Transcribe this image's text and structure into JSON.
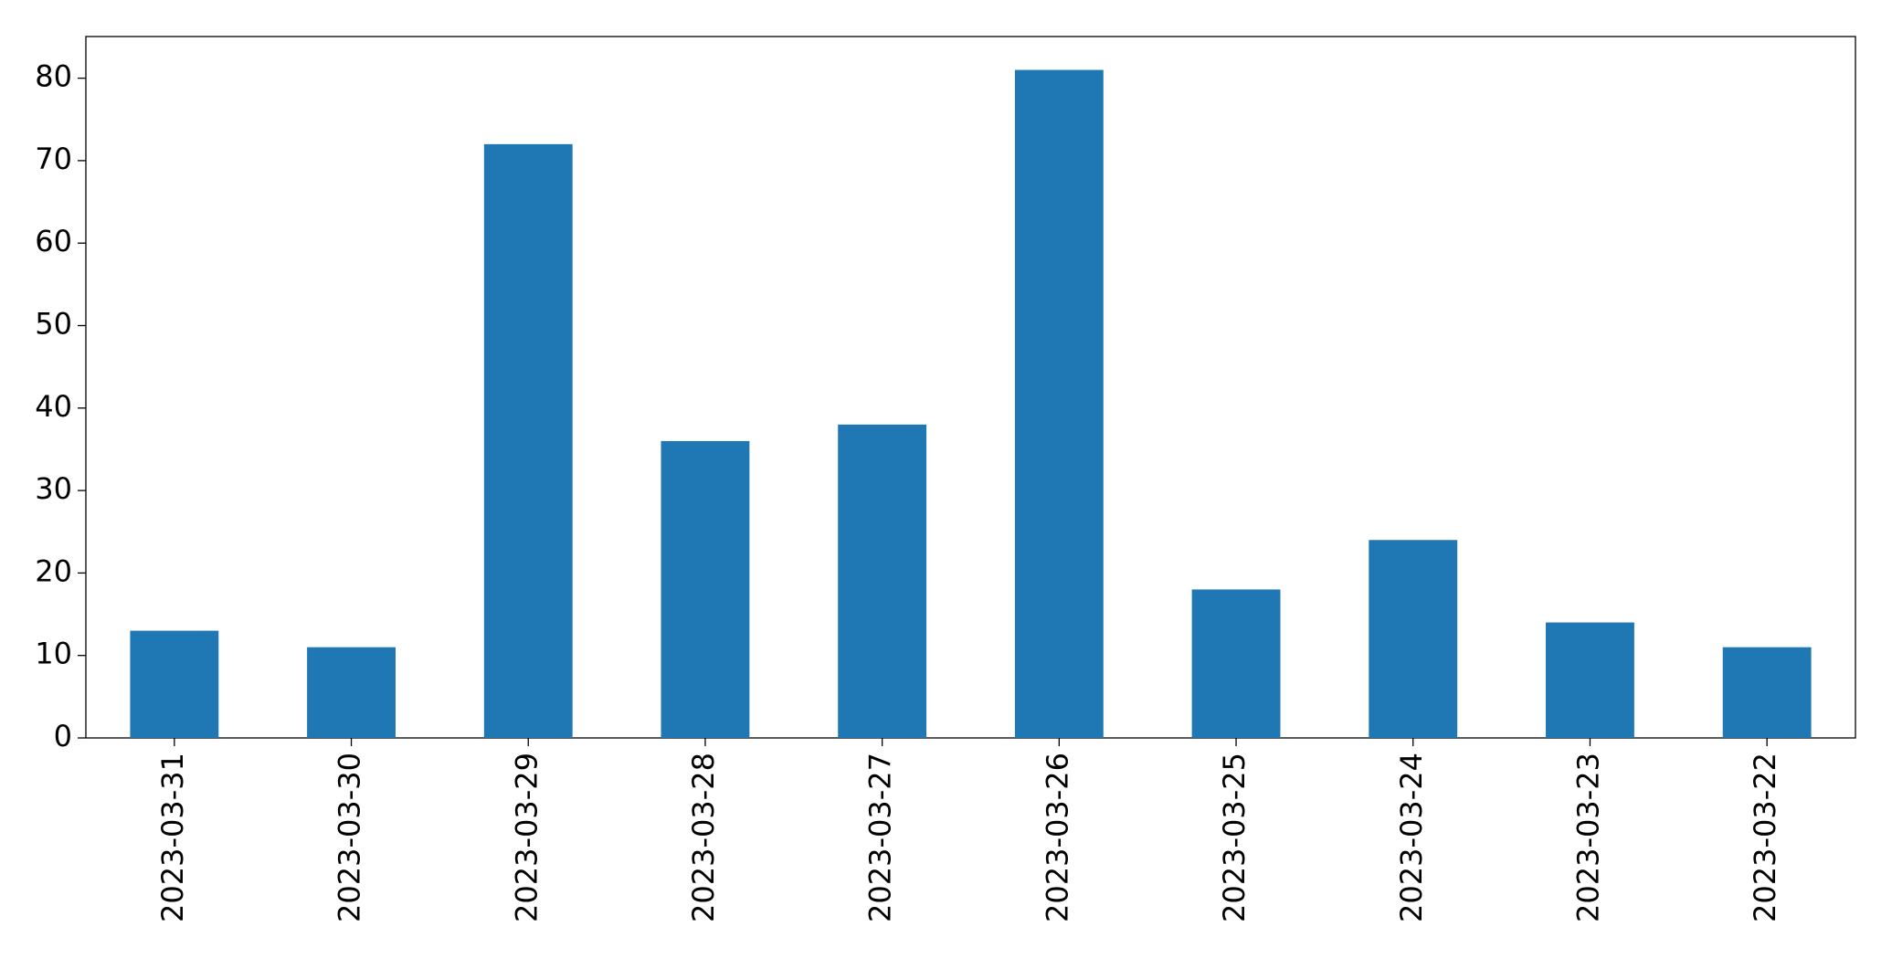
{
  "chart_data": {
    "type": "bar",
    "categories": [
      "2023-03-31",
      "2023-03-30",
      "2023-03-29",
      "2023-03-28",
      "2023-03-27",
      "2023-03-26",
      "2023-03-25",
      "2023-03-24",
      "2023-03-23",
      "2023-03-22"
    ],
    "values": [
      13,
      11,
      72,
      36,
      38,
      81,
      18,
      24,
      14,
      11
    ],
    "color": "#1f77b4",
    "ylim": [
      0,
      85.05
    ],
    "yticks": [
      0,
      10,
      20,
      30,
      40,
      50,
      60,
      70,
      80
    ],
    "grid": false
  }
}
